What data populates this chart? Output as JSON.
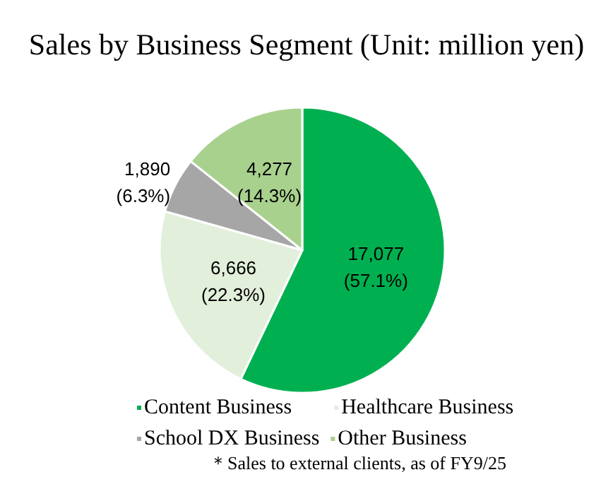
{
  "chart_data": {
    "type": "pie",
    "title": "Sales by Business Segment (Unit: million yen)",
    "categories": [
      "Content Business",
      "Healthcare Business",
      "School DX Business",
      "Other Business"
    ],
    "values": [
      17077,
      6666,
      1890,
      4277
    ],
    "colors": [
      "#00b050",
      "#e2efda",
      "#a6a6a6",
      "#a9d18e"
    ],
    "value_labels": [
      "17,077\n(57.1%)",
      "6,666\n(22.3%)",
      "1,890\n(6.3%)",
      "4,277\n(14.3%)"
    ],
    "legend": "bottom",
    "annotations": [
      "＊Sales to external clients, as of FY9/25"
    ]
  }
}
